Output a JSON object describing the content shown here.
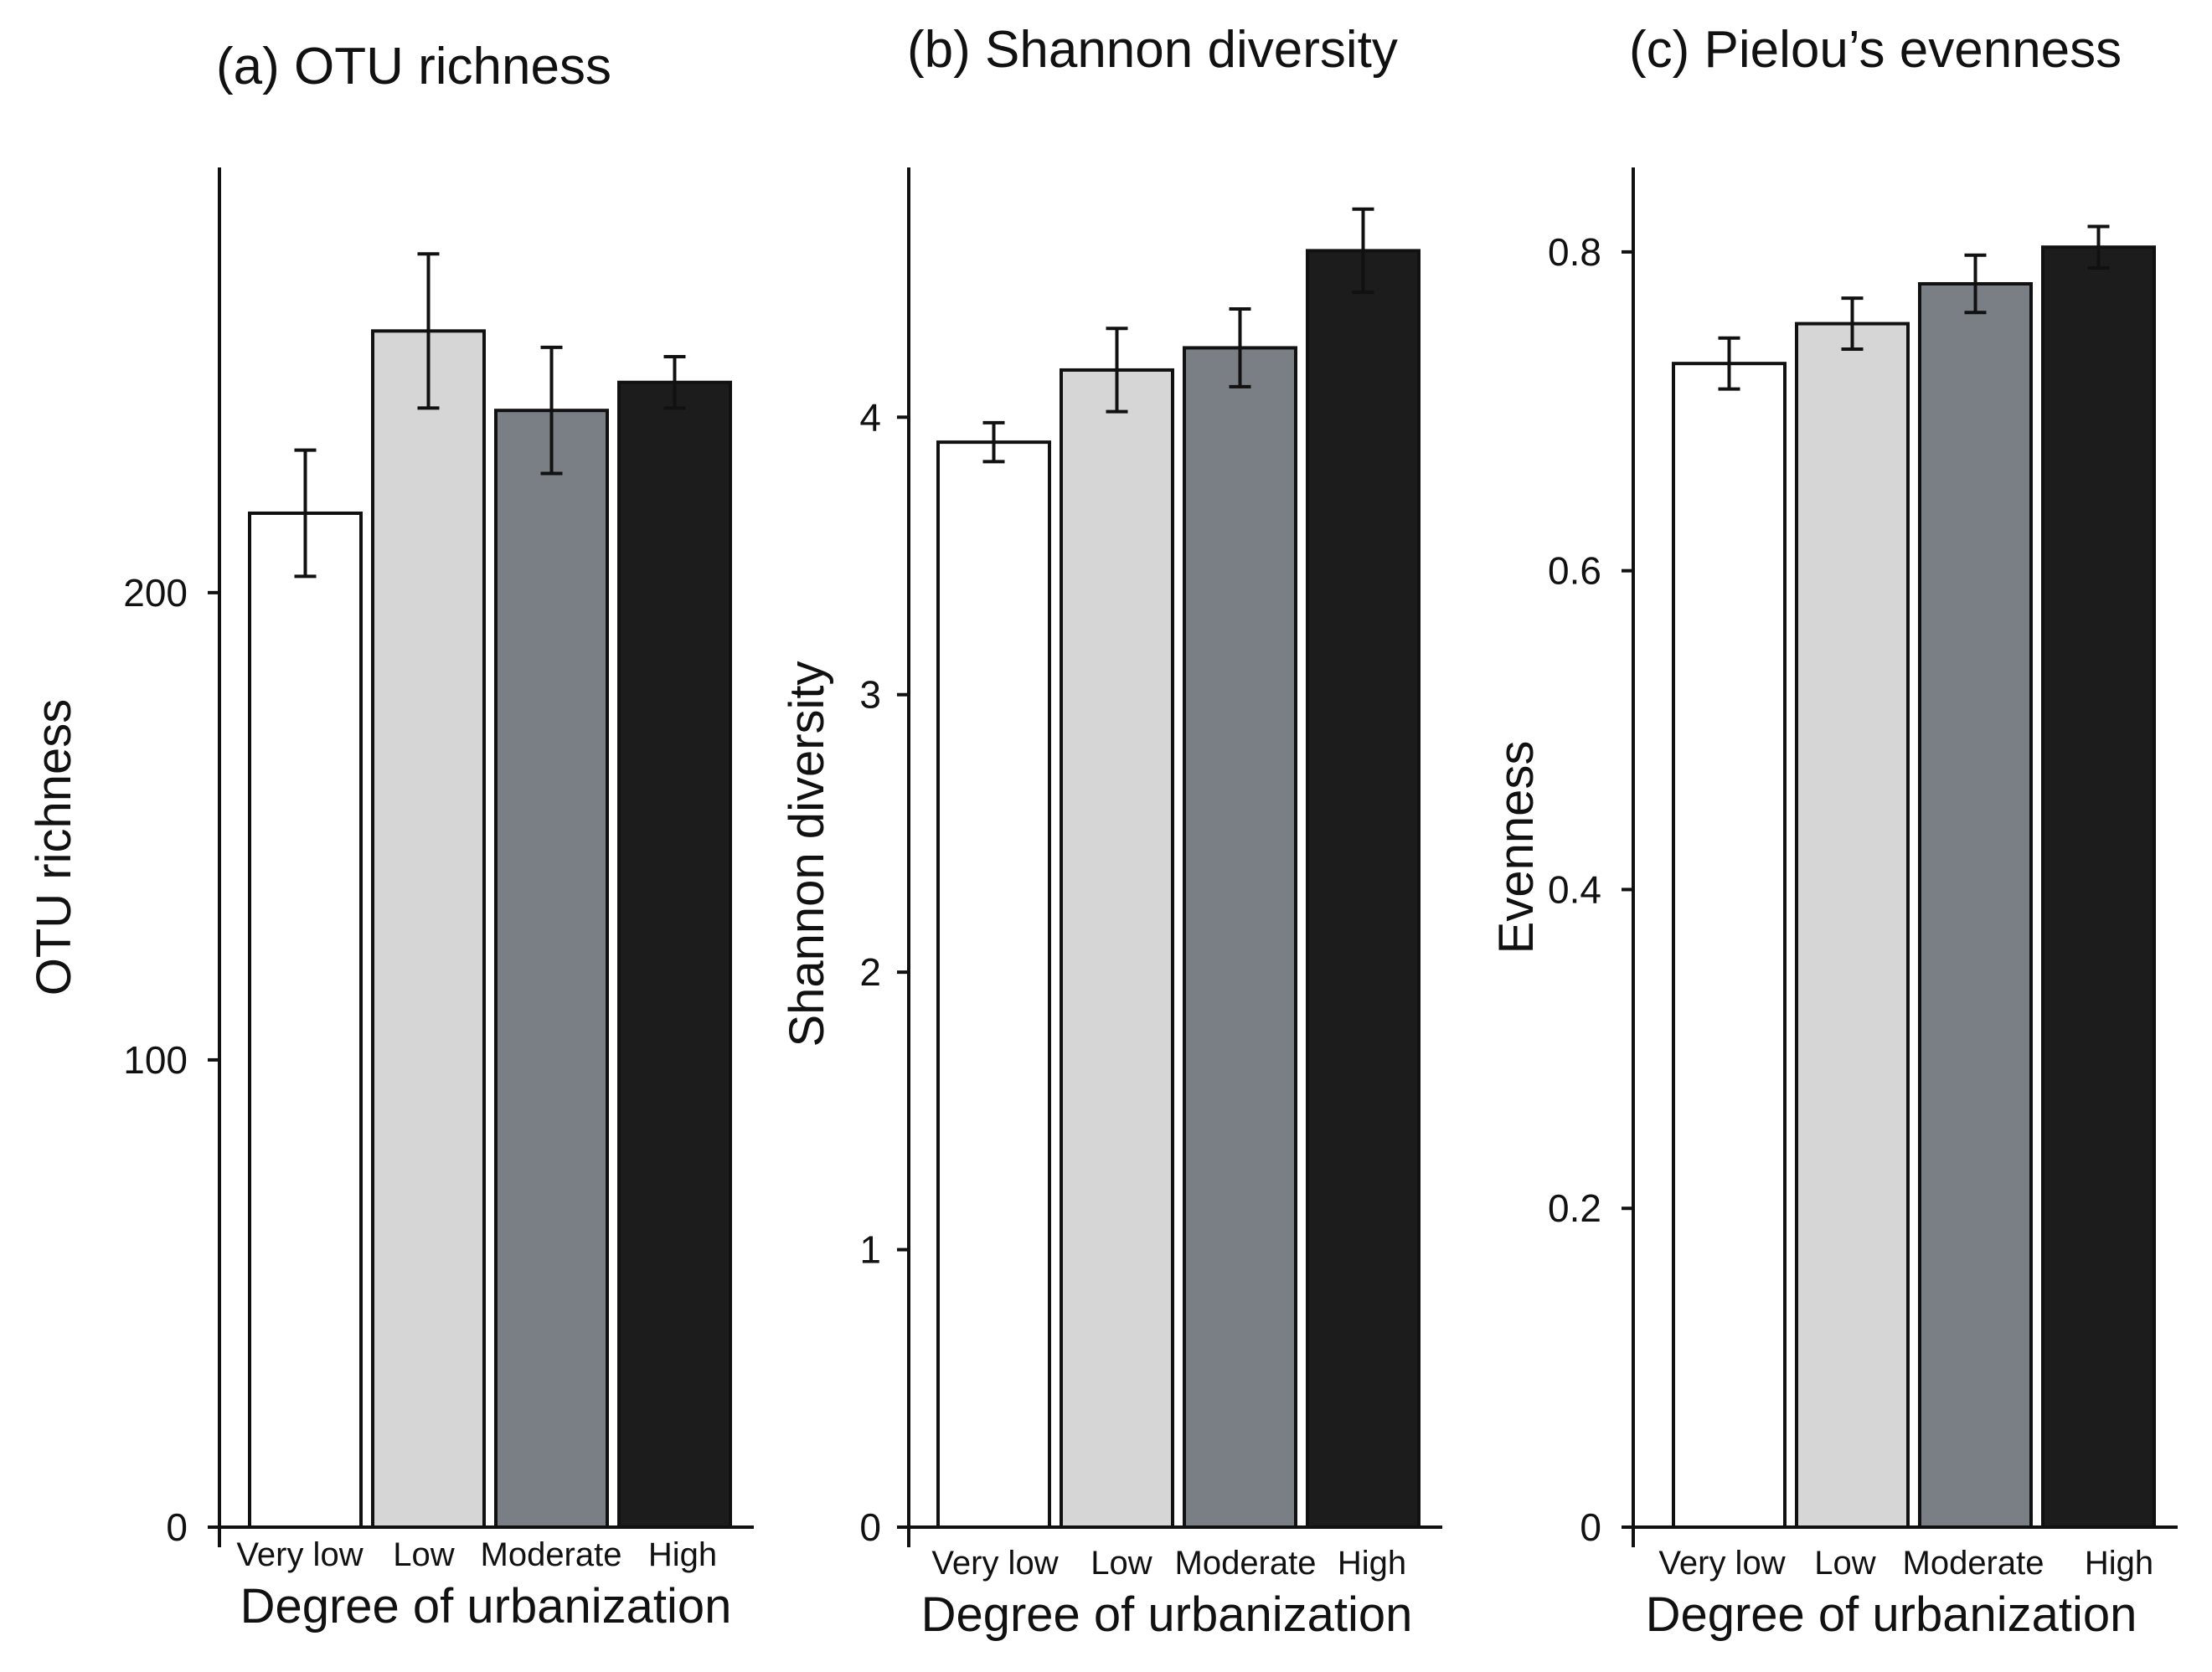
{
  "chart_data": [
    {
      "type": "bar",
      "title": "(a) OTU richness",
      "xlabel": "Degree of urbanization",
      "ylabel": "OTU richness",
      "categories": [
        "Very low",
        "Low",
        "Moderate",
        "High"
      ],
      "values": [
        217,
        256,
        239,
        245
      ],
      "errors": [
        13.5,
        16.5,
        13.5,
        5.5
      ],
      "yticks": [
        0,
        100,
        200
      ],
      "ytick_labels": [
        "0",
        "100",
        "200"
      ],
      "ylim": [
        0,
        291
      ],
      "colors": [
        "#ffffff",
        "#d6d6d6",
        "#7a7f86",
        "#1d1c1d"
      ]
    },
    {
      "type": "bar",
      "title": "(b) Shannon diversity",
      "xlabel": "Degree of urbanization",
      "ylabel": "Shannon diversity",
      "categories": [
        "Very low",
        "Low",
        "Moderate",
        "High"
      ],
      "values": [
        3.91,
        4.17,
        4.25,
        4.6
      ],
      "errors": [
        0.07,
        0.15,
        0.14,
        0.15
      ],
      "yticks": [
        0,
        1,
        2,
        3,
        4
      ],
      "ytick_labels": [
        "0",
        "1",
        "2",
        "3",
        "4"
      ],
      "ylim": [
        0,
        4.9
      ],
      "colors": [
        "#ffffff",
        "#d6d6d6",
        "#7a7f86",
        "#1d1c1d"
      ]
    },
    {
      "type": "bar",
      "title": "(c) Pielou’s evenness",
      "xlabel": "Degree of urbanization",
      "ylabel": "Evenness",
      "categories": [
        "Very low",
        "Low",
        "Moderate",
        "High"
      ],
      "values": [
        0.73,
        0.755,
        0.78,
        0.803
      ],
      "errors": [
        0.016,
        0.016,
        0.018,
        0.013
      ],
      "yticks": [
        0,
        0.2,
        0.4,
        0.6,
        0.8
      ],
      "ytick_labels": [
        "0",
        "0.2",
        "0.4",
        "0.6",
        "0.8"
      ],
      "ylim": [
        0,
        0.853
      ],
      "colors": [
        "#ffffff",
        "#d6d6d6",
        "#7a7f86",
        "#1d1c1d"
      ]
    }
  ]
}
